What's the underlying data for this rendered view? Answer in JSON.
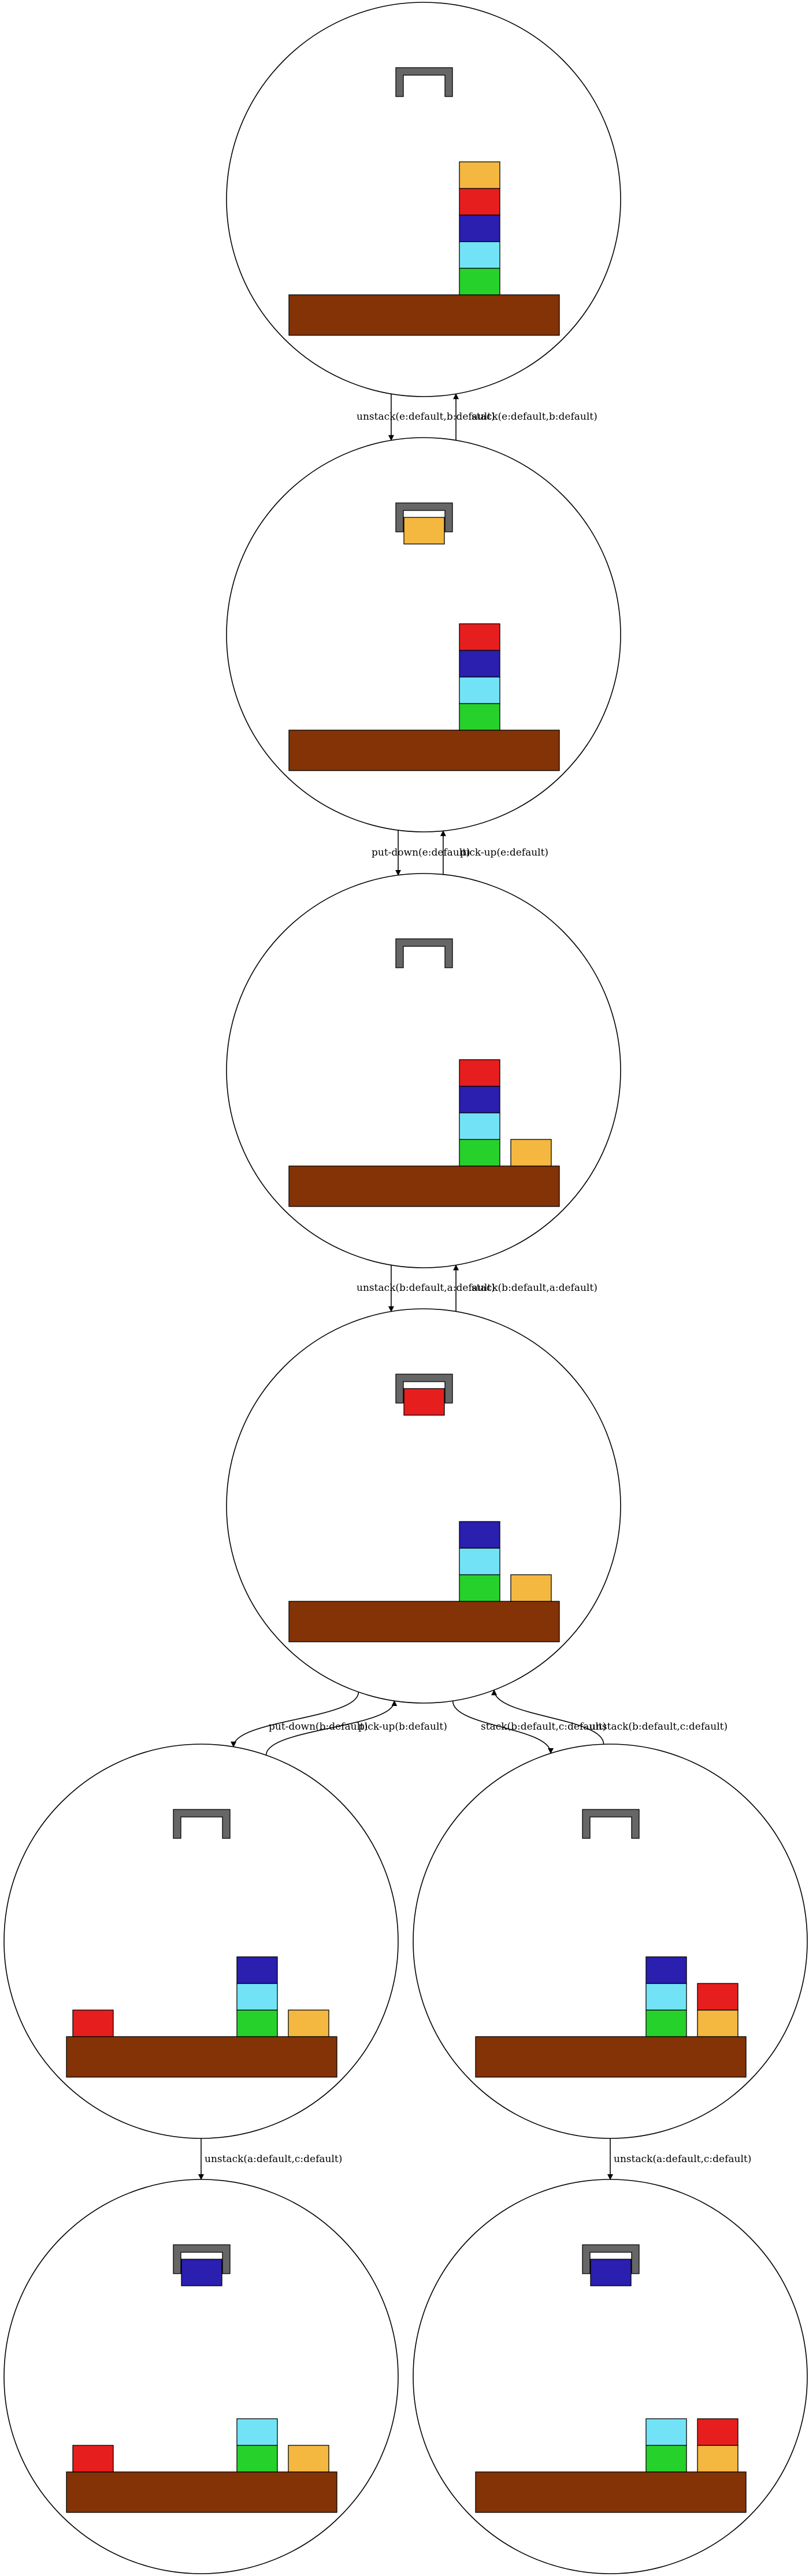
{
  "colors": {
    "orange": "#f4b740",
    "red": "#e61e1e",
    "blue": "#2a1fae",
    "cyan": "#72e3f7",
    "green": "#27d12b",
    "table": "#833305",
    "gripper": "#666666"
  },
  "nodes": [
    {
      "id": "s0",
      "holding": null,
      "stacks": [
        {
          "slot": 3,
          "blocks": [
            "green",
            "cyan",
            "blue",
            "red",
            "orange"
          ]
        }
      ]
    },
    {
      "id": "s1",
      "holding": "orange",
      "stacks": [
        {
          "slot": 3,
          "blocks": [
            "green",
            "cyan",
            "blue",
            "red"
          ]
        }
      ]
    },
    {
      "id": "s2",
      "holding": null,
      "stacks": [
        {
          "slot": 3,
          "blocks": [
            "green",
            "cyan",
            "blue",
            "red"
          ]
        },
        {
          "slot": 4,
          "blocks": [
            "orange"
          ]
        }
      ]
    },
    {
      "id": "s3",
      "holding": "red",
      "stacks": [
        {
          "slot": 3,
          "blocks": [
            "green",
            "cyan",
            "blue"
          ]
        },
        {
          "slot": 4,
          "blocks": [
            "orange"
          ]
        }
      ]
    },
    {
      "id": "s4",
      "holding": null,
      "stacks": [
        {
          "slot": 1,
          "blocks": [
            "red"
          ]
        },
        {
          "slot": 3,
          "blocks": [
            "green",
            "cyan",
            "blue"
          ]
        },
        {
          "slot": 4,
          "blocks": [
            "orange"
          ]
        }
      ]
    },
    {
      "id": "s5",
      "holding": null,
      "stacks": [
        {
          "slot": 3,
          "blocks": [
            "green",
            "cyan",
            "blue"
          ]
        },
        {
          "slot": 4,
          "blocks": [
            "orange",
            "red"
          ]
        }
      ]
    },
    {
      "id": "s6",
      "holding": "blue",
      "stacks": [
        {
          "slot": 1,
          "blocks": [
            "red"
          ]
        },
        {
          "slot": 3,
          "blocks": [
            "green",
            "cyan"
          ]
        },
        {
          "slot": 4,
          "blocks": [
            "orange"
          ]
        }
      ]
    },
    {
      "id": "s7",
      "holding": "blue",
      "stacks": [
        {
          "slot": 3,
          "blocks": [
            "green",
            "cyan"
          ]
        },
        {
          "slot": 4,
          "blocks": [
            "orange",
            "red"
          ]
        }
      ]
    }
  ],
  "edges": [
    {
      "from": "s0",
      "to": "s1",
      "label": "unstack(e:default,b:default)"
    },
    {
      "from": "s1",
      "to": "s0",
      "label": "stack(e:default,b:default)"
    },
    {
      "from": "s1",
      "to": "s2",
      "label": "put-down(e:default)"
    },
    {
      "from": "s2",
      "to": "s1",
      "label": "pick-up(e:default)"
    },
    {
      "from": "s2",
      "to": "s3",
      "label": "unstack(b:default,a:default)"
    },
    {
      "from": "s3",
      "to": "s2",
      "label": "stack(b:default,a:default)"
    },
    {
      "from": "s3",
      "to": "s4",
      "label": "put-down(b:default)"
    },
    {
      "from": "s4",
      "to": "s3",
      "label": "pick-up(b:default)"
    },
    {
      "from": "s3",
      "to": "s5",
      "label": "stack(b:default,c:default)"
    },
    {
      "from": "s5",
      "to": "s3",
      "label": "unstack(b:default,c:default)"
    },
    {
      "from": "s4",
      "to": "s6",
      "label": "unstack(a:default,c:default)"
    },
    {
      "from": "s5",
      "to": "s7",
      "label": "unstack(a:default,c:default)"
    }
  ]
}
